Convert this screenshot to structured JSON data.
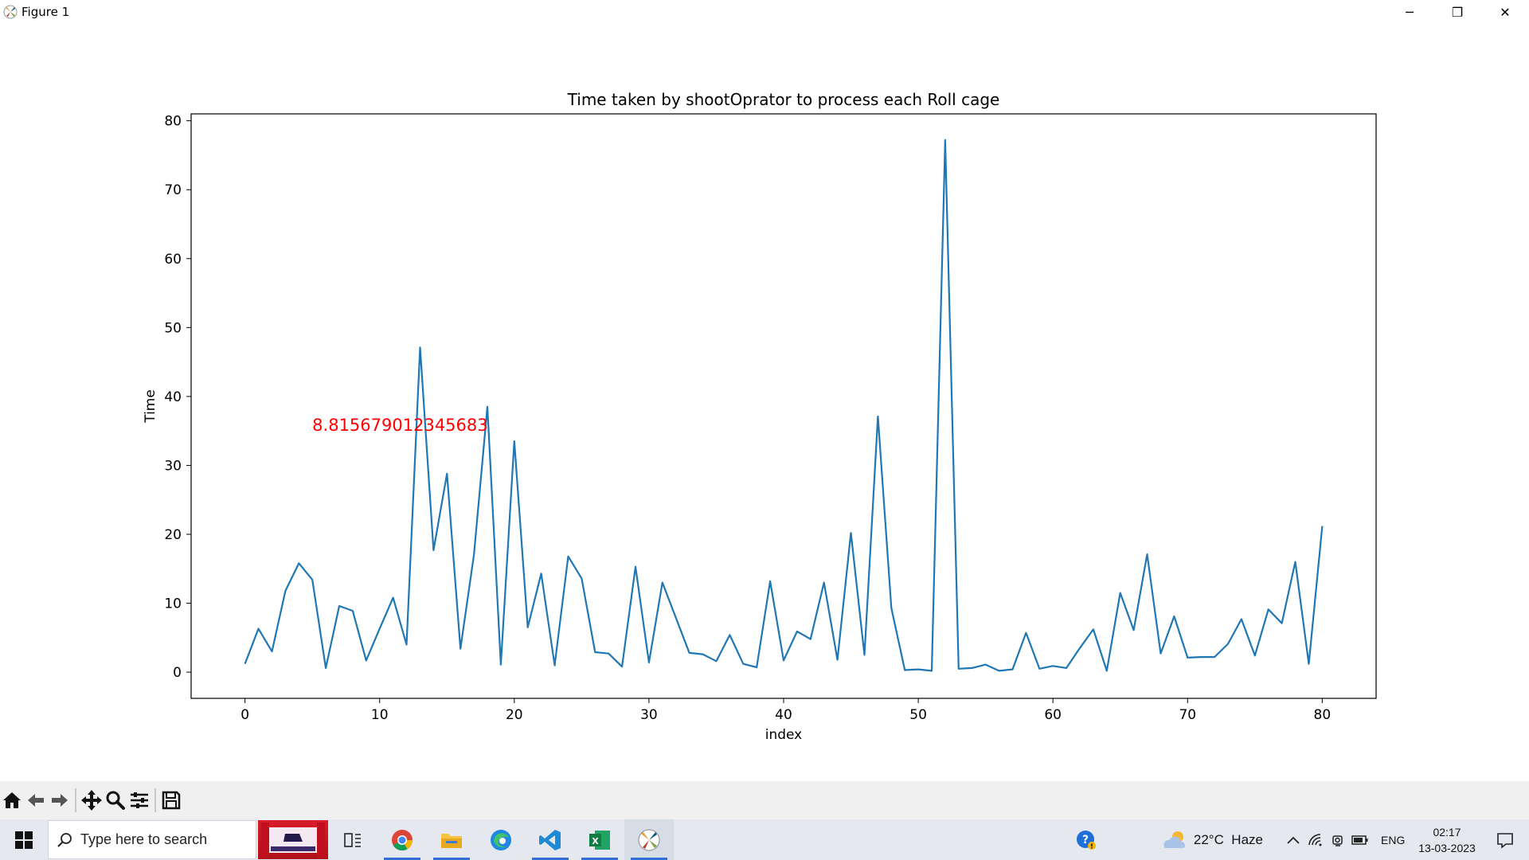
{
  "window": {
    "title": "Figure 1",
    "controls": {
      "minimize": "─",
      "maximize": "❐",
      "close": "✕"
    }
  },
  "chart_data": {
    "type": "line",
    "title": "Time taken by shootOprator to process each Roll cage",
    "xlabel": "index",
    "ylabel": "Time",
    "xlim": [
      -4,
      84
    ],
    "ylim": [
      -3.8,
      81
    ],
    "xticks": [
      0,
      10,
      20,
      30,
      40,
      50,
      60,
      70,
      80
    ],
    "yticks": [
      0,
      10,
      20,
      30,
      40,
      50,
      60,
      70,
      80
    ],
    "line_color": "#1f77b4",
    "grid": false,
    "annotation": {
      "text": "8.815679012345683",
      "x": 5,
      "y": 35,
      "color": "#ff0000"
    },
    "x": [
      0,
      1,
      2,
      3,
      4,
      5,
      6,
      7,
      8,
      9,
      10,
      11,
      12,
      13,
      14,
      15,
      16,
      17,
      18,
      19,
      20,
      21,
      22,
      23,
      24,
      25,
      26,
      27,
      28,
      29,
      30,
      31,
      32,
      33,
      34,
      35,
      36,
      37,
      38,
      39,
      40,
      41,
      42,
      43,
      44,
      45,
      46,
      47,
      48,
      49,
      50,
      51,
      52,
      53,
      54,
      55,
      56,
      57,
      58,
      59,
      60,
      61,
      62,
      63,
      64,
      65,
      66,
      67,
      68,
      69,
      70,
      71,
      72,
      73,
      74,
      75,
      76,
      77,
      78,
      79,
      80
    ],
    "series": [
      {
        "values": [
          1.2,
          6.3,
          3.0,
          11.8,
          15.8,
          13.4,
          0.6,
          9.6,
          8.9,
          1.7,
          6.3,
          10.8,
          4.0,
          47.1,
          17.7,
          28.8,
          3.4,
          17.0,
          38.5,
          1.1,
          33.5,
          6.5,
          14.3,
          1.0,
          16.8,
          13.6,
          2.9,
          2.7,
          0.8,
          15.3,
          1.4,
          13.0,
          7.9,
          2.8,
          2.6,
          1.6,
          5.4,
          1.2,
          0.7,
          13.2,
          1.7,
          5.9,
          4.8,
          13.0,
          1.8,
          20.2,
          2.5,
          37.1,
          9.3,
          0.3,
          0.4,
          0.2,
          77.2,
          0.5,
          0.6,
          1.1,
          0.2,
          0.4,
          5.7,
          0.5,
          0.9,
          0.6,
          3.5,
          6.2,
          0.2,
          11.5,
          6.1,
          17.1,
          2.7,
          8.1,
          2.1,
          2.2,
          2.2,
          4.1,
          7.7,
          2.4,
          9.1,
          7.1,
          16.0,
          1.2,
          21.2
        ]
      }
    ]
  },
  "toolbar": {
    "buttons": [
      {
        "name": "home-button",
        "icon": "home-icon"
      },
      {
        "name": "back-button",
        "icon": "arrow-left-icon"
      },
      {
        "name": "forward-button",
        "icon": "arrow-right-icon"
      },
      {
        "name": "pan-button",
        "icon": "move-icon"
      },
      {
        "name": "zoom-button",
        "icon": "magnifier-icon"
      },
      {
        "name": "subplots-button",
        "icon": "sliders-icon"
      },
      {
        "name": "save-button",
        "icon": "floppy-icon"
      }
    ]
  },
  "taskbar": {
    "search_placeholder": "Type here to search",
    "weather": "22°C  Haze",
    "language": "ENG",
    "time": "02:17",
    "date": "13-03-2023"
  }
}
